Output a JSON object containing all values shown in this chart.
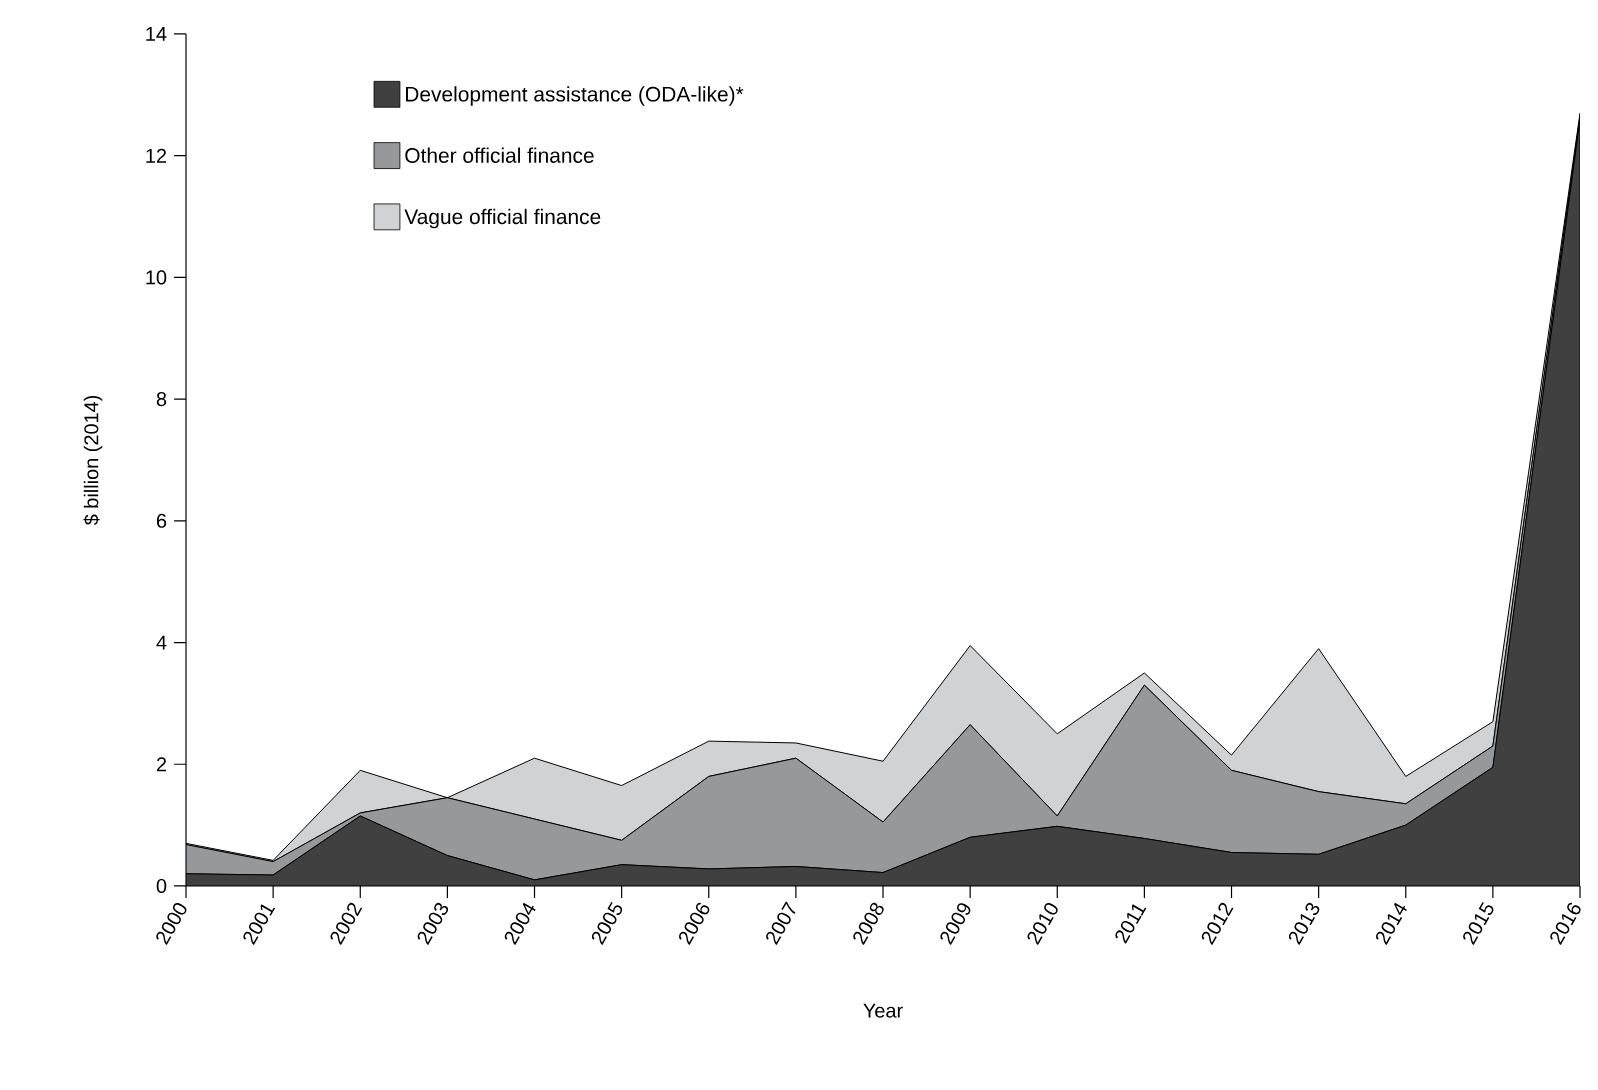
{
  "chart_data": {
    "type": "area",
    "stacked": true,
    "xlabel": "Year",
    "ylabel": "$ billion (2014)",
    "categories": [
      "2000",
      "2001",
      "2002",
      "2003",
      "2004",
      "2005",
      "2006",
      "2007",
      "2008",
      "2009",
      "2010",
      "2011",
      "2012",
      "2013",
      "2014",
      "2015",
      "2016"
    ],
    "ylim": [
      0,
      14
    ],
    "yticks": [
      0,
      2,
      4,
      6,
      8,
      10,
      12,
      14
    ],
    "grid": false,
    "legend": "top left",
    "series": [
      {
        "name": "Development assistance (ODA-like)*",
        "color": "#404040",
        "values": [
          0.2,
          0.18,
          1.15,
          0.5,
          0.1,
          0.35,
          0.28,
          0.32,
          0.22,
          0.8,
          0.98,
          0.78,
          0.55,
          0.52,
          1.0,
          1.95,
          12.6
        ]
      },
      {
        "name": "Other official finance",
        "color": "#97989a",
        "values": [
          0.48,
          0.22,
          0.05,
          0.95,
          1.0,
          0.4,
          1.52,
          1.78,
          0.83,
          1.85,
          0.17,
          2.52,
          1.35,
          1.03,
          0.35,
          0.35,
          0.05
        ]
      },
      {
        "name": "Vague official finance",
        "color": "#d1d2d4",
        "values": [
          0.02,
          0.02,
          0.7,
          0,
          1.0,
          0.9,
          0.58,
          0.25,
          1.0,
          1.3,
          1.35,
          0.2,
          0.25,
          2.35,
          0.45,
          0.4,
          0.05
        ]
      }
    ]
  }
}
